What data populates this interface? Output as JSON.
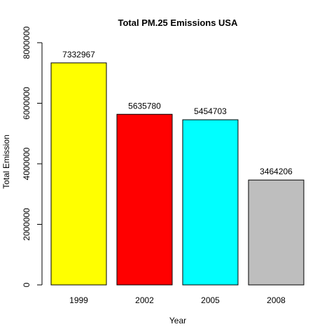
{
  "chart_data": {
    "type": "bar",
    "title": "Total PM.25 Emissions USA",
    "xlabel": "Year",
    "ylabel": "Total Emission",
    "categories": [
      "1999",
      "2002",
      "2005",
      "2008"
    ],
    "values": [
      7332967,
      5635780,
      5454703,
      3464206
    ],
    "data_labels": [
      "7332967",
      "5635780",
      "5454703",
      "3464206"
    ],
    "colors": [
      "#ffff00",
      "#ff0000",
      "#00ffff",
      "#bebebe"
    ],
    "ylim": [
      0,
      8000000
    ],
    "yticks": [
      0,
      2000000,
      4000000,
      6000000,
      8000000
    ],
    "ytick_labels": [
      "0",
      "2000000",
      "4000000",
      "6000000",
      "8000000"
    ],
    "grid": false,
    "legend": "none"
  }
}
